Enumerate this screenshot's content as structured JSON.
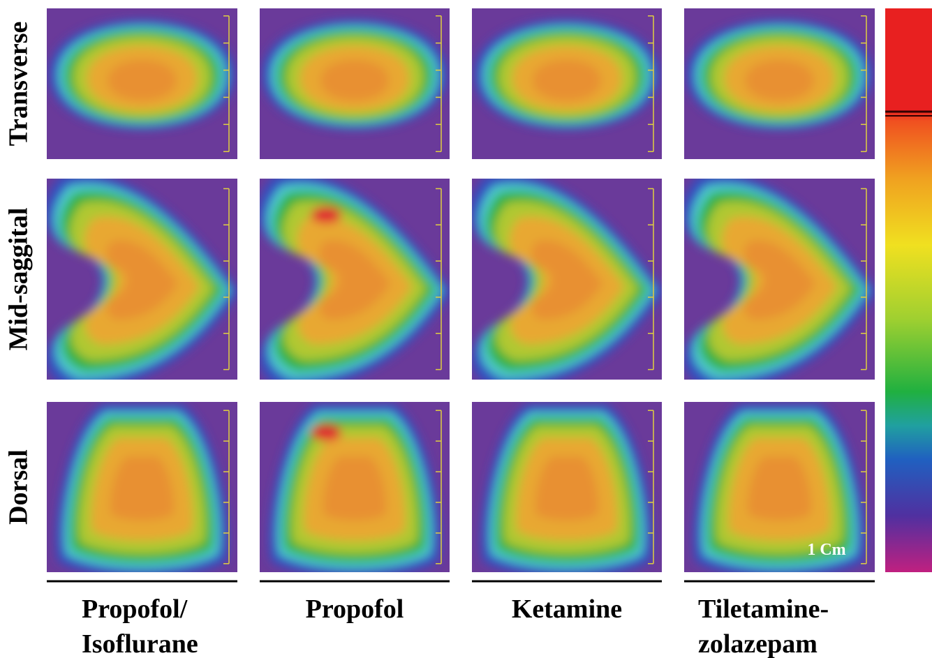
{
  "rows": [
    "Transverse",
    "Mid-saggital",
    "Dorsal"
  ],
  "columns": [
    [
      "Propofol/",
      "Isoflurane"
    ],
    [
      "Propofol"
    ],
    [
      "Ketamine"
    ],
    [
      "Tiletamine-",
      "zolazepam"
    ]
  ],
  "scale_label": "1 Cm"
}
